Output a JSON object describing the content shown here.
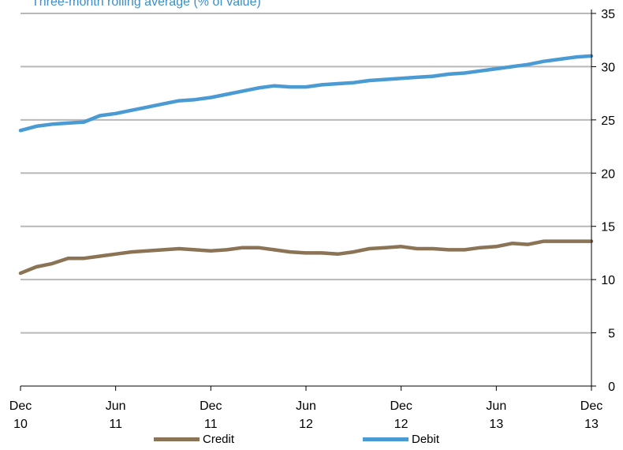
{
  "chart_data": {
    "type": "line",
    "title": "Three-month rolling average (% of value)",
    "x": [
      "Dec 10",
      "Jan 11",
      "Feb 11",
      "Mar 11",
      "Apr 11",
      "May 11",
      "Jun 11",
      "Jul 11",
      "Aug 11",
      "Sep 11",
      "Oct 11",
      "Nov 11",
      "Dec 11",
      "Jan 12",
      "Feb 12",
      "Mar 12",
      "Apr 12",
      "May 12",
      "Jun 12",
      "Jul 12",
      "Aug 12",
      "Sep 12",
      "Oct 12",
      "Nov 12",
      "Dec 12",
      "Jan 13",
      "Feb 13",
      "Mar 13",
      "Apr 13",
      "May 13",
      "Jun 13",
      "Jul 13",
      "Aug 13",
      "Sep 13",
      "Oct 13",
      "Nov 13",
      "Dec 13"
    ],
    "x_ticks": [
      {
        "top": "Dec",
        "bottom": "10"
      },
      {
        "top": "Jun",
        "bottom": "11"
      },
      {
        "top": "Dec",
        "bottom": "11"
      },
      {
        "top": "Jun",
        "bottom": "12"
      },
      {
        "top": "Dec",
        "bottom": "12"
      },
      {
        "top": "Jun",
        "bottom": "13"
      },
      {
        "top": "Dec",
        "bottom": "13"
      }
    ],
    "y_ticks": [
      0,
      5,
      10,
      15,
      20,
      25,
      30,
      35
    ],
    "ylim": [
      0,
      35
    ],
    "y_axis_side": "right",
    "grid": true,
    "legend_position": "bottom",
    "series": [
      {
        "name": "Credit",
        "color": "#8b7355",
        "values": [
          10.6,
          11.2,
          11.5,
          12.0,
          12.0,
          12.2,
          12.4,
          12.6,
          12.7,
          12.8,
          12.9,
          12.8,
          12.7,
          12.8,
          13.0,
          13.0,
          12.8,
          12.6,
          12.5,
          12.5,
          12.4,
          12.6,
          12.9,
          13.0,
          13.1,
          12.9,
          12.9,
          12.8,
          12.8,
          13.0,
          13.1,
          13.4,
          13.3,
          13.6,
          13.6,
          13.6,
          13.6
        ]
      },
      {
        "name": "Debit",
        "color": "#4a9ad4",
        "values": [
          24.0,
          24.4,
          24.6,
          24.7,
          24.8,
          25.4,
          25.6,
          25.9,
          26.2,
          26.5,
          26.8,
          26.9,
          27.1,
          27.4,
          27.7,
          28.0,
          28.2,
          28.1,
          28.1,
          28.3,
          28.4,
          28.5,
          28.7,
          28.8,
          28.9,
          29.0,
          29.1,
          29.3,
          29.4,
          29.6,
          29.8,
          30.0,
          30.2,
          30.5,
          30.7,
          30.9,
          31.0
        ]
      }
    ]
  }
}
